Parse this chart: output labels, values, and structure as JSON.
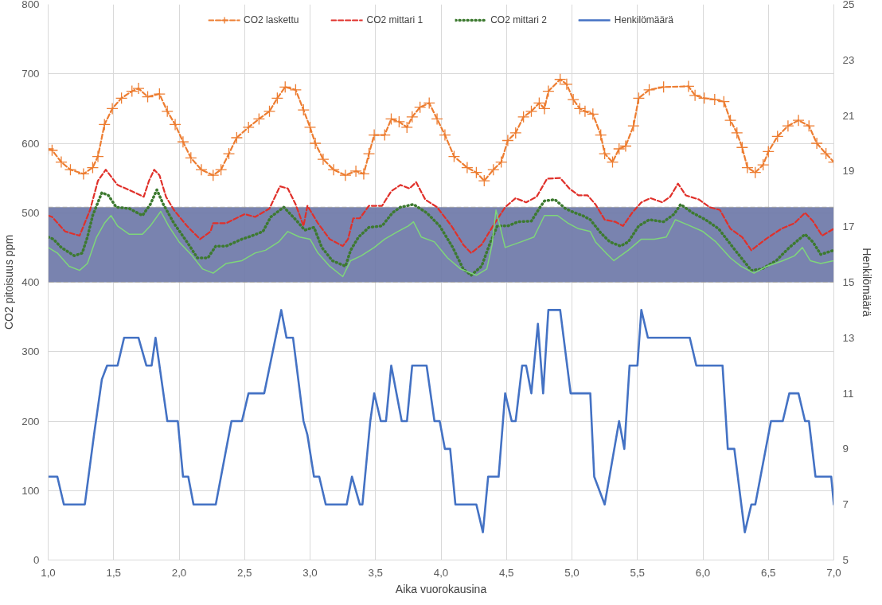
{
  "chart_data": {
    "type": "line",
    "xlabel": "Aika vuorokausina",
    "ylabel": "CO2 pitoisuus ppm",
    "y2label": "Henkilömäärä",
    "xlim": [
      1,
      7
    ],
    "xticks": [
      {
        "value": 1,
        "label": "1,0"
      },
      {
        "value": 1.5,
        "label": "1,5"
      },
      {
        "value": 2,
        "label": "2,0"
      },
      {
        "value": 2.5,
        "label": "2,5"
      },
      {
        "value": 3,
        "label": "3,0"
      },
      {
        "value": 3.5,
        "label": "3,5"
      },
      {
        "value": 4,
        "label": "4,0"
      },
      {
        "value": 4.5,
        "label": "4,5"
      },
      {
        "value": 5,
        "label": "5,0"
      },
      {
        "value": 5.5,
        "label": "5,5"
      },
      {
        "value": 6,
        "label": "6,0"
      },
      {
        "value": 6.5,
        "label": "6,5"
      },
      {
        "value": 7,
        "label": "7,0"
      }
    ],
    "ylim": [
      0,
      800
    ],
    "yticks": [
      0,
      100,
      200,
      300,
      400,
      500,
      600,
      700,
      800
    ],
    "y2lim": [
      5,
      25
    ],
    "y2ticks": [
      5,
      7,
      9,
      11,
      13,
      15,
      17,
      19,
      21,
      23,
      25
    ],
    "grid": true,
    "legend": "top",
    "bands": [
      {
        "axis": "y",
        "from": 400,
        "to": 508,
        "color": "#6a76a6"
      }
    ],
    "series": [
      {
        "name": "CO2 laskettu",
        "color": "#ed7d31",
        "marker": "cross",
        "line_style": "dashed",
        "x": [
          1.0,
          1.03,
          1.1,
          1.17,
          1.27,
          1.34,
          1.38,
          1.43,
          1.49,
          1.56,
          1.64,
          1.69,
          1.76,
          1.85,
          1.91,
          1.97,
          2.03,
          2.09,
          2.17,
          2.26,
          2.32,
          2.38,
          2.44,
          2.53,
          2.61,
          2.69,
          2.75,
          2.81,
          2.89,
          2.95,
          3.0,
          3.04,
          3.1,
          3.18,
          3.27,
          3.35,
          3.41,
          3.45,
          3.49,
          3.57,
          3.62,
          3.68,
          3.74,
          3.78,
          3.84,
          3.91,
          3.97,
          4.03,
          4.1,
          4.2,
          4.27,
          4.33,
          4.4,
          4.46,
          4.51,
          4.57,
          4.63,
          4.69,
          4.75,
          4.79,
          4.82,
          4.91,
          4.96,
          5.01,
          5.06,
          5.1,
          5.16,
          5.22,
          5.25,
          5.31,
          5.36,
          5.41,
          5.47,
          5.51,
          5.59,
          5.7,
          5.89,
          5.94,
          6.01,
          6.09,
          6.16,
          6.21,
          6.26,
          6.3,
          6.34,
          6.4,
          6.46,
          6.5,
          6.57,
          6.65,
          6.73,
          6.81,
          6.87,
          6.94,
          7.0
        ],
        "values": [
          592,
          590,
          573,
          562,
          556,
          565,
          581,
          627,
          650,
          665,
          675,
          679,
          667,
          671,
          646,
          627,
          602,
          579,
          562,
          554,
          562,
          585,
          608,
          623,
          635,
          646,
          665,
          681,
          677,
          648,
          623,
          600,
          577,
          562,
          554,
          560,
          556,
          585,
          612,
          612,
          635,
          631,
          623,
          638,
          652,
          658,
          635,
          612,
          581,
          565,
          558,
          546,
          562,
          573,
          604,
          615,
          638,
          646,
          658,
          650,
          675,
          692,
          685,
          663,
          650,
          646,
          642,
          612,
          585,
          573,
          592,
          596,
          625,
          665,
          677,
          681,
          682,
          669,
          665,
          663,
          660,
          633,
          615,
          594,
          565,
          558,
          569,
          588,
          610,
          625,
          633,
          625,
          600,
          585,
          573
        ]
      },
      {
        "name": "CO2 mittari 1",
        "color": "#e0302a",
        "line_style": "dashed",
        "x": [
          1.0,
          1.03,
          1.13,
          1.24,
          1.32,
          1.38,
          1.44,
          1.53,
          1.64,
          1.73,
          1.77,
          1.81,
          1.85,
          1.9,
          1.96,
          2.06,
          2.16,
          2.24,
          2.26,
          2.36,
          2.5,
          2.58,
          2.69,
          2.77,
          2.83,
          2.89,
          2.95,
          2.98,
          3.06,
          3.15,
          3.25,
          3.29,
          3.33,
          3.38,
          3.45,
          3.55,
          3.62,
          3.69,
          3.76,
          3.81,
          3.88,
          3.97,
          4.08,
          4.17,
          4.23,
          4.31,
          4.41,
          4.49,
          4.57,
          4.65,
          4.73,
          4.81,
          4.91,
          4.98,
          5.05,
          5.12,
          5.18,
          5.25,
          5.33,
          5.39,
          5.46,
          5.53,
          5.6,
          5.69,
          5.75,
          5.81,
          5.87,
          5.97,
          6.05,
          6.13,
          6.21,
          6.3,
          6.37,
          6.48,
          6.6,
          6.7,
          6.78,
          6.84,
          6.91,
          7.0
        ],
        "values": [
          496,
          494,
          473,
          467,
          504,
          546,
          562,
          540,
          531,
          523,
          546,
          562,
          554,
          523,
          504,
          481,
          462,
          473,
          485,
          485,
          498,
          494,
          506,
          538,
          535,
          512,
          481,
          510,
          485,
          462,
          452,
          462,
          492,
          492,
          510,
          510,
          531,
          540,
          535,
          544,
          519,
          508,
          481,
          454,
          442,
          454,
          485,
          508,
          521,
          515,
          523,
          549,
          550,
          535,
          525,
          525,
          512,
          490,
          487,
          481,
          500,
          515,
          521,
          515,
          523,
          542,
          525,
          519,
          508,
          504,
          477,
          465,
          446,
          462,
          477,
          485,
          500,
          488,
          467,
          477
        ]
      },
      {
        "name": "CO2 mittari 2",
        "color": "#3d7a30",
        "line_style": "dotted",
        "x": [
          1.0,
          1.04,
          1.1,
          1.2,
          1.26,
          1.3,
          1.34,
          1.41,
          1.46,
          1.52,
          1.62,
          1.72,
          1.78,
          1.83,
          1.88,
          1.96,
          2.06,
          2.14,
          2.22,
          2.28,
          2.36,
          2.48,
          2.56,
          2.64,
          2.7,
          2.8,
          2.9,
          2.96,
          3.03,
          3.09,
          3.17,
          3.27,
          3.31,
          3.37,
          3.45,
          3.55,
          3.63,
          3.69,
          3.79,
          3.89,
          3.99,
          4.09,
          4.17,
          4.23,
          4.31,
          4.37,
          4.43,
          4.51,
          4.59,
          4.69,
          4.75,
          4.79,
          4.87,
          4.95,
          5.02,
          5.08,
          5.14,
          5.22,
          5.29,
          5.37,
          5.43,
          5.51,
          5.59,
          5.7,
          5.78,
          5.83,
          5.92,
          6.02,
          6.12,
          6.23,
          6.31,
          6.37,
          6.45,
          6.56,
          6.66,
          6.78,
          6.84,
          6.9,
          7.0
        ],
        "values": [
          465,
          462,
          450,
          438,
          442,
          465,
          496,
          529,
          525,
          508,
          506,
          496,
          512,
          533,
          512,
          485,
          458,
          435,
          435,
          452,
          452,
          462,
          467,
          473,
          494,
          508,
          488,
          475,
          479,
          450,
          431,
          423,
          446,
          465,
          479,
          481,
          500,
          508,
          512,
          500,
          481,
          450,
          419,
          410,
          423,
          454,
          481,
          481,
          487,
          488,
          506,
          517,
          519,
          506,
          500,
          496,
          490,
          471,
          458,
          452,
          458,
          481,
          490,
          487,
          498,
          512,
          500,
          490,
          477,
          450,
          431,
          417,
          419,
          431,
          450,
          469,
          458,
          440,
          446
        ]
      },
      {
        "color": "#7fd67a",
        "line_style": "solid",
        "x": [
          1.0,
          1.07,
          1.16,
          1.24,
          1.3,
          1.37,
          1.43,
          1.48,
          1.53,
          1.62,
          1.72,
          1.78,
          1.86,
          1.92,
          2.0,
          2.1,
          2.18,
          2.26,
          2.36,
          2.48,
          2.58,
          2.66,
          2.76,
          2.83,
          2.92,
          3.0,
          3.06,
          3.15,
          3.25,
          3.31,
          3.39,
          3.49,
          3.57,
          3.67,
          3.75,
          3.79,
          3.85,
          3.95,
          4.05,
          4.15,
          4.27,
          4.35,
          4.39,
          4.42,
          4.49,
          4.61,
          4.71,
          4.79,
          4.89,
          4.97,
          5.05,
          5.14,
          5.18,
          5.26,
          5.32,
          5.43,
          5.53,
          5.63,
          5.72,
          5.79,
          5.88,
          6.0,
          6.1,
          6.21,
          6.29,
          6.39,
          6.49,
          6.61,
          6.7,
          6.76,
          6.82,
          6.9,
          7.0
        ],
        "values": [
          450,
          442,
          423,
          417,
          427,
          465,
          485,
          496,
          481,
          469,
          469,
          481,
          502,
          481,
          458,
          438,
          419,
          413,
          427,
          431,
          442,
          446,
          458,
          473,
          465,
          462,
          442,
          423,
          408,
          431,
          438,
          450,
          462,
          473,
          481,
          487,
          465,
          458,
          435,
          419,
          410,
          419,
          454,
          504,
          450,
          458,
          465,
          496,
          496,
          485,
          477,
          473,
          458,
          442,
          431,
          446,
          462,
          462,
          465,
          490,
          483,
          473,
          458,
          435,
          423,
          413,
          423,
          431,
          438,
          450,
          431,
          427,
          431
        ]
      },
      {
        "name": "Henkilömäärä",
        "color": "#4472c4",
        "axis": "y2",
        "line_style": "solid",
        "x": [
          1.0,
          1.03,
          1.07,
          1.12,
          1.28,
          1.35,
          1.41,
          1.45,
          1.53,
          1.58,
          1.69,
          1.75,
          1.79,
          1.82,
          1.91,
          1.99,
          2.03,
          2.07,
          2.11,
          2.28,
          2.4,
          2.48,
          2.53,
          2.65,
          2.78,
          2.82,
          2.87,
          2.95,
          2.98,
          3.03,
          3.07,
          3.12,
          3.28,
          3.32,
          3.38,
          3.4,
          3.46,
          3.49,
          3.54,
          3.58,
          3.62,
          3.7,
          3.74,
          3.78,
          3.89,
          3.95,
          3.99,
          4.03,
          4.07,
          4.11,
          4.27,
          4.32,
          4.36,
          4.44,
          4.49,
          4.54,
          4.57,
          4.62,
          4.65,
          4.69,
          4.74,
          4.78,
          4.82,
          4.91,
          4.99,
          5.14,
          5.17,
          5.25,
          5.36,
          5.4,
          5.44,
          5.5,
          5.53,
          5.58,
          5.9,
          5.95,
          6.15,
          6.19,
          6.24,
          6.32,
          6.37,
          6.4,
          6.52,
          6.61,
          6.66,
          6.73,
          6.78,
          6.81,
          6.86,
          6.98,
          7.0
        ],
        "values": [
          8,
          8,
          8,
          7,
          7,
          9.5,
          11.5,
          12,
          12,
          13,
          13,
          12,
          12,
          13,
          10,
          10,
          8,
          8,
          7,
          7,
          10,
          10,
          11,
          11,
          14,
          13,
          13,
          10,
          9.5,
          8,
          8,
          7,
          7,
          8,
          7,
          7,
          10,
          11,
          10,
          10,
          12,
          10,
          10,
          12,
          12,
          10,
          10,
          9,
          9,
          7,
          7,
          6,
          8,
          8,
          11,
          10,
          10,
          12,
          12,
          11,
          13.5,
          11,
          14,
          14,
          11,
          11,
          8,
          7,
          10,
          9,
          12,
          12,
          14,
          13,
          13,
          12,
          12,
          9,
          9,
          6,
          7,
          7,
          10,
          10,
          11,
          11,
          10,
          10,
          8,
          8,
          7
        ]
      }
    ]
  }
}
